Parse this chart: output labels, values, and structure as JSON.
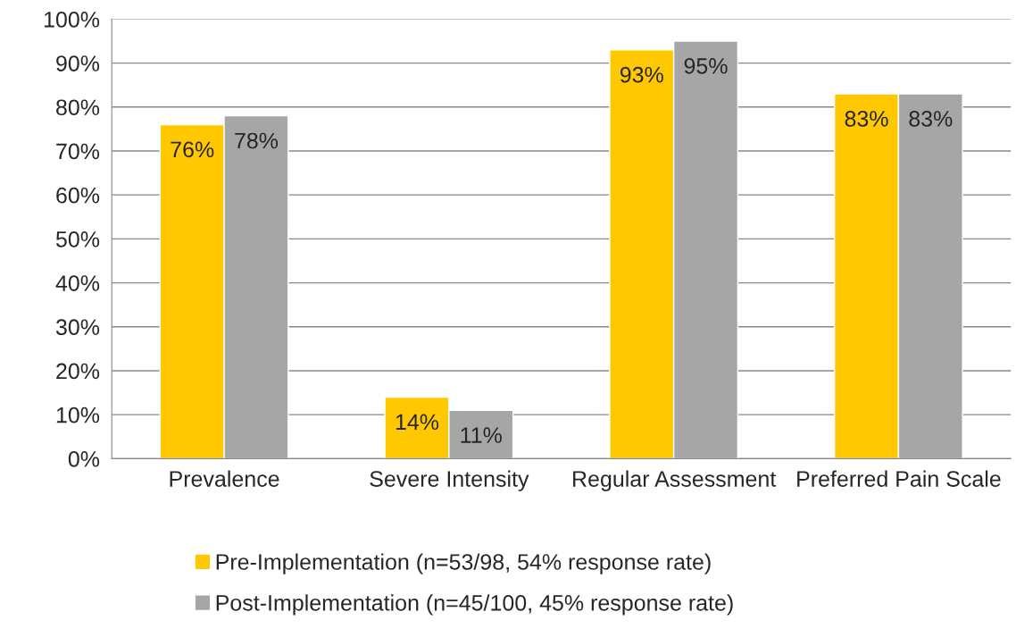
{
  "chart_data": {
    "type": "bar",
    "categories": [
      "Prevalence",
      "Severe Intensity",
      "Regular Assessment",
      "Preferred Pain Scale"
    ],
    "series": [
      {
        "name": "Pre-Implementation (n=53/98, 54% response rate)",
        "color": "#ffc800",
        "values": [
          76,
          14,
          93,
          83
        ],
        "value_labels": [
          "76%",
          "14%",
          "93%",
          "83%"
        ]
      },
      {
        "name": "Post-Implementation (n=45/100, 45% response rate)",
        "color": "#a6a6a6",
        "values": [
          78,
          11,
          95,
          83
        ],
        "value_labels": [
          "78%",
          "11%",
          "95%",
          "83%"
        ]
      }
    ],
    "ylim": [
      0,
      100
    ],
    "yticks": [
      {
        "value": 0,
        "label": "0%"
      },
      {
        "value": 10,
        "label": "10%"
      },
      {
        "value": 20,
        "label": "20%"
      },
      {
        "value": 30,
        "label": "30%"
      },
      {
        "value": 40,
        "label": "40%"
      },
      {
        "value": 50,
        "label": "50%"
      },
      {
        "value": 60,
        "label": "60%"
      },
      {
        "value": 70,
        "label": "70%"
      },
      {
        "value": 80,
        "label": "80%"
      },
      {
        "value": 90,
        "label": "90%"
      },
      {
        "value": 100,
        "label": "100%"
      }
    ],
    "grid": "y",
    "legend": "bottom"
  }
}
